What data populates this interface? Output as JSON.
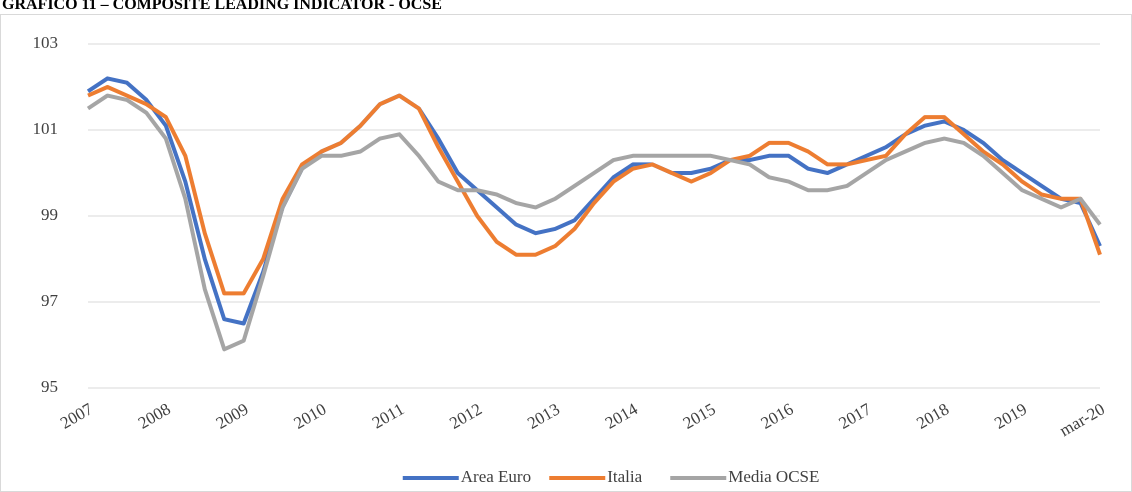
{
  "chart_data": {
    "type": "line",
    "title": "GRAFICO 11 – COMPOSITE LEADING INDICATOR - OCSE",
    "categories": [
      "2007",
      null,
      null,
      null,
      "2008",
      null,
      null,
      null,
      "2009",
      null,
      null,
      null,
      "2010",
      null,
      null,
      null,
      "2011",
      null,
      null,
      null,
      "2012",
      null,
      null,
      null,
      "2013",
      null,
      null,
      null,
      "2014",
      null,
      null,
      null,
      "2015",
      null,
      null,
      null,
      "2016",
      null,
      null,
      null,
      "2017",
      null,
      null,
      null,
      "2018",
      null,
      null,
      null,
      "2019",
      null,
      null,
      null,
      "mar-20"
    ],
    "series": [
      {
        "name": "Area Euro",
        "color": "#4472c4",
        "values": [
          101.9,
          102.2,
          102.1,
          101.7,
          101.1,
          99.8,
          98.0,
          96.6,
          96.5,
          97.7,
          99.2,
          100.1,
          100.5,
          100.7,
          101.1,
          101.6,
          101.8,
          101.5,
          100.8,
          100.0,
          99.6,
          99.2,
          98.8,
          98.6,
          98.7,
          98.9,
          99.4,
          99.9,
          100.2,
          100.2,
          100.0,
          100.0,
          100.1,
          100.3,
          100.3,
          100.4,
          100.4,
          100.1,
          100.0,
          100.2,
          100.4,
          100.6,
          100.9,
          101.1,
          101.2,
          101.0,
          100.7,
          100.3,
          100.0,
          99.7,
          99.4,
          99.3,
          98.3
        ]
      },
      {
        "name": "Italia",
        "color": "#ed7d31",
        "values": [
          101.8,
          102.0,
          101.8,
          101.6,
          101.3,
          100.4,
          98.6,
          97.2,
          97.2,
          98.0,
          99.4,
          100.2,
          100.5,
          100.7,
          101.1,
          101.6,
          101.8,
          101.5,
          100.6,
          99.8,
          99.0,
          98.4,
          98.1,
          98.1,
          98.3,
          98.7,
          99.3,
          99.8,
          100.1,
          100.2,
          100.0,
          99.8,
          100.0,
          100.3,
          100.4,
          100.7,
          100.7,
          100.5,
          100.2,
          100.2,
          100.3,
          100.4,
          100.9,
          101.3,
          101.3,
          100.9,
          100.5,
          100.2,
          99.8,
          99.5,
          99.4,
          99.4,
          98.1
        ]
      },
      {
        "name": "Media OCSE",
        "color": "#a5a5a5",
        "values": [
          101.5,
          101.8,
          101.7,
          101.4,
          100.8,
          99.4,
          97.3,
          95.9,
          96.1,
          97.6,
          99.2,
          100.1,
          100.4,
          100.4,
          100.5,
          100.8,
          100.9,
          100.4,
          99.8,
          99.6,
          99.6,
          99.5,
          99.3,
          99.2,
          99.4,
          99.7,
          100.0,
          100.3,
          100.4,
          100.4,
          100.4,
          100.4,
          100.4,
          100.3,
          100.2,
          99.9,
          99.8,
          99.6,
          99.6,
          99.7,
          100.0,
          100.3,
          100.5,
          100.7,
          100.8,
          100.7,
          100.4,
          100.0,
          99.6,
          99.4,
          99.2,
          99.4,
          98.8
        ]
      }
    ],
    "ylim": [
      95,
      103
    ],
    "yticks": [
      95,
      97,
      99,
      101,
      103
    ],
    "grid": true,
    "legend": "bottom"
  }
}
